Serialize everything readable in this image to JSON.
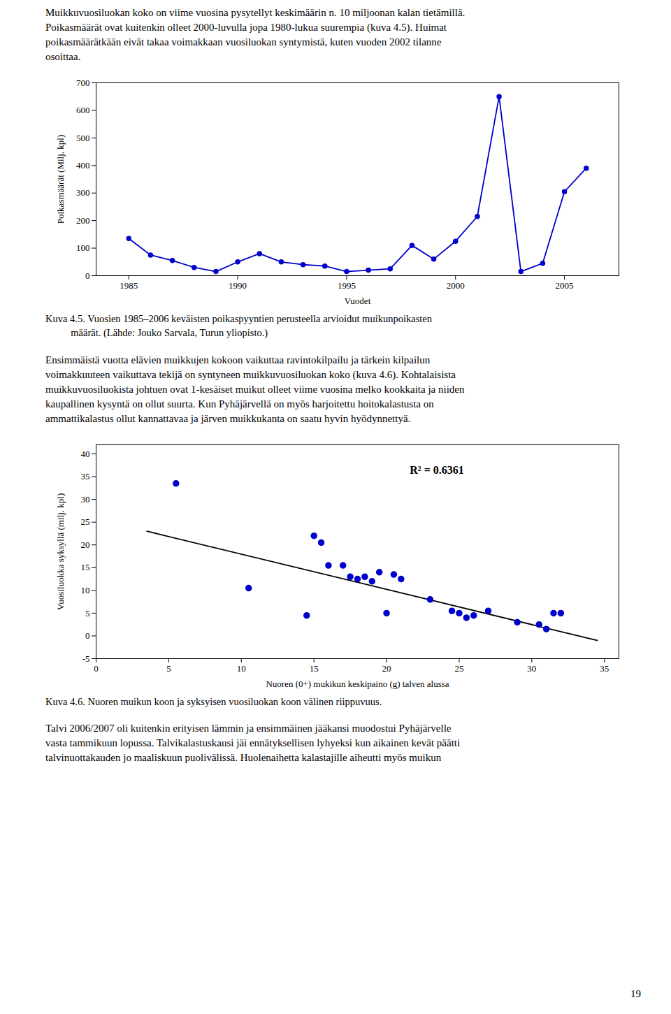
{
  "paragraphs": [
    "Muikkuvuosiluokan koko on viime vuosina pysytellyt keskimäärin n. 10 miljoonan kalan tietämillä.\nPoikasmäärät ovat kuitenkin olleet 2000-luvulla jopa 1980-lukua suurempia (kuva 4.5). Huimat\npoikasmäärätkään eivät takaa voimakkaan vuosiluokan syntymistä, kuten vuoden 2002 tilanne\nosoittaa.",
    "Ensimmäistä vuotta elävien muikkujen kokoon vaikuttaa ravintokilpailu ja tärkein kilpailun\nvoimakkuuteen vaikuttava tekijä on syntyneen muikkuvuosiluokan koko (kuva 4.6). Kohtalaisista\nmuikkuvuosiluokista johtuen ovat 1-kesäiset muikut olleet viime vuosina melko kookkaita ja niiden\nkaupallinen kysyntä on ollut suurta. Kun Pyhäjärvellä on myös harjoitettu hoitokalastusta on\nammattikalastus ollut kannattavaa ja järven muikkukanta on saatu hyvin hyödynnettyä.",
    "Talvi 2006/2007 oli kuitenkin erityisen lämmin ja ensimmäinen jääkansi muodostui Pyhäjärvelle\nvasta tammikuun lopussa. Talvikalastuskausi jäi ennätyksellisen lyhyeksi kun aikainen kevät päätti\ntalvinuottakauden jo maaliskuun puolivälissä. Huolenaihetta kalastajille aiheutti myös muikun"
  ],
  "page_number": "19",
  "chart_data": [
    {
      "type": "line",
      "x": [
        1985,
        1986,
        1987,
        1988,
        1989,
        1990,
        1991,
        1992,
        1993,
        1994,
        1995,
        1996,
        1997,
        1998,
        1999,
        2000,
        2001,
        2002,
        2003,
        2004,
        2005,
        2006
      ],
      "values": [
        135,
        75,
        55,
        30,
        15,
        50,
        80,
        50,
        40,
        35,
        15,
        20,
        25,
        110,
        60,
        125,
        215,
        650,
        15,
        45,
        305,
        390
      ],
      "color": "#0000CC",
      "marker": "circle",
      "line_style": "solid",
      "xlabel": "Vuodet",
      "ylabel": "Poikasmäärät (Milj. kpl)",
      "xlim": [
        1983.5,
        2007.5
      ],
      "xticks": [
        1985,
        1990,
        1995,
        2000,
        2005
      ],
      "ylim": [
        0,
        700
      ],
      "yticks": [
        0,
        100,
        200,
        300,
        400,
        500,
        600,
        700
      ],
      "grid": false,
      "caption": "Kuva 4.5. Vuosien 1985–2006 keväisten poikaspyyntien perusteella arvioidut muikunpoikasten\n          määrät. (Lähde: Jouko Sarvala, Turun yliopisto.)"
    },
    {
      "type": "scatter",
      "x": [
        5.5,
        10.5,
        14.5,
        15.0,
        15.5,
        16.0,
        17.0,
        17.5,
        18.0,
        18.5,
        19.0,
        19.5,
        20.0,
        20.5,
        21.0,
        23.0,
        24.5,
        25.0,
        25.5,
        26.0,
        27.0,
        29.0,
        30.5,
        31.0,
        31.5,
        32.0
      ],
      "values": [
        33.5,
        10.5,
        4.5,
        22.0,
        20.5,
        15.5,
        15.5,
        13.0,
        12.5,
        13.0,
        12.0,
        14.0,
        5.0,
        13.5,
        12.5,
        8.0,
        5.5,
        5.0,
        4.0,
        4.5,
        5.5,
        3.0,
        2.5,
        1.5,
        5.0,
        5.0
      ],
      "color": "#0000CC",
      "marker": "circle",
      "trendline": {
        "type": "line",
        "x": [
          3.5,
          34.5
        ],
        "values": [
          23.0,
          -1.0
        ],
        "color": "#000000",
        "line_style": "solid"
      },
      "annotation": "R² = 0.6361",
      "xlabel": "Nuoren (0+) mukikun keskipaino (g) talven alussa",
      "ylabel": "Vuosiluokka syksyllä (milj. kpl)",
      "xlim": [
        0,
        36
      ],
      "xticks": [
        0,
        5,
        10,
        15,
        20,
        25,
        30,
        35
      ],
      "ylim": [
        -5,
        42
      ],
      "yticks": [
        -5,
        0,
        5,
        10,
        15,
        20,
        25,
        30,
        35,
        40
      ],
      "grid": false,
      "caption": "Kuva 4.6. Nuoren muikun koon ja syksyisen vuosiluokan koon välinen riippuvuus."
    }
  ]
}
